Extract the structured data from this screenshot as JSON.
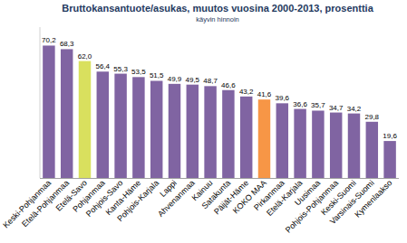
{
  "chart_data": {
    "type": "bar",
    "title": "Bruttokansantuote/asukas, muutos vuosina 2000-2013, prosenttia",
    "subtitle": "käyvin hinnoin",
    "categories": [
      "Keski-Pohjanmaa",
      "Etelä-Pohjanmaa",
      "Etelä-Savo",
      "Pohjanmaa",
      "Pohjois-Savo",
      "Kanta-Häme",
      "Pohjois-Karjala",
      "Lappi",
      "Ahvenanmaa",
      "Kainuu",
      "Satakunta",
      "Päijät-Häme",
      "KOKO MAA",
      "Pirkanmaa",
      "Etelä-Karjala",
      "Uusimaa",
      "Pohjois-Pohjanmaa",
      "Keski-Suomi",
      "Varsinais-Suomi",
      "Kymenlaakso"
    ],
    "values": [
      70.2,
      68.3,
      62.0,
      56.4,
      55.3,
      53.5,
      51.5,
      49.9,
      49.5,
      48.7,
      46.6,
      43.2,
      41.6,
      39.6,
      36.6,
      35.7,
      34.7,
      34.2,
      29.8,
      19.6
    ],
    "value_labels": [
      "70,2",
      "68,3",
      "62,0",
      "56,4",
      "55,3",
      "53,5",
      "51,5",
      "49,9",
      "49,5",
      "48,7",
      "46,6",
      "43,2",
      "41,6",
      "39,6",
      "36,6",
      "35,7",
      "34,7",
      "34,2",
      "29,8",
      "19,6"
    ],
    "colors": [
      "#8064a2",
      "#8064a2",
      "#d9e05e",
      "#8064a2",
      "#8064a2",
      "#8064a2",
      "#8064a2",
      "#8064a2",
      "#8064a2",
      "#8064a2",
      "#8064a2",
      "#8064a2",
      "#f79646",
      "#8064a2",
      "#8064a2",
      "#8064a2",
      "#8064a2",
      "#8064a2",
      "#8064a2",
      "#8064a2"
    ],
    "ylim": [
      0,
      80
    ],
    "grid": false,
    "data_labels": true,
    "tick_labels": "x"
  }
}
